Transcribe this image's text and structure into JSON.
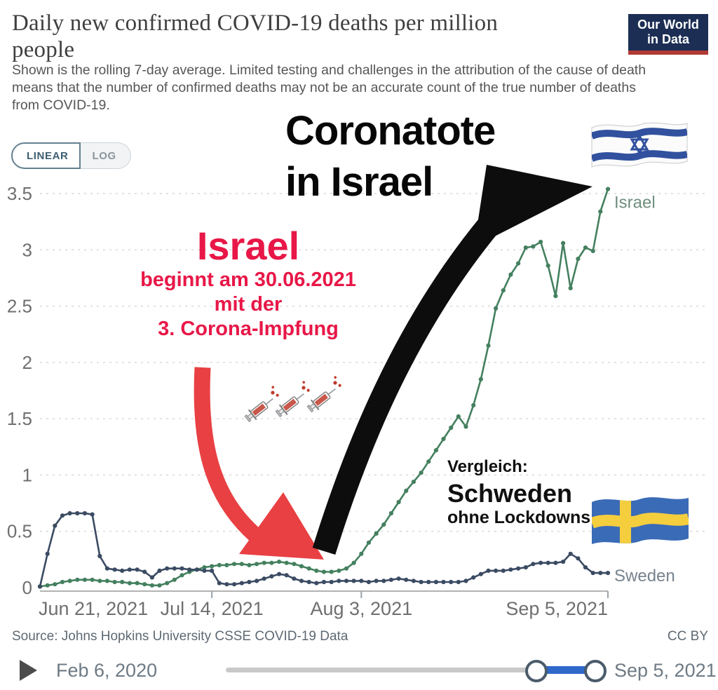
{
  "header": {
    "title_line1": "Daily new confirmed COVID-19 deaths per million",
    "title_line2": "people",
    "subtitle": "Shown is the rolling 7-day average. Limited testing and challenges in the attribution of the cause of death means that the number of confirmed deaths may not be an accurate count of the true number of deaths from COVID-19.",
    "logo_line1": "Our World",
    "logo_line2": "in Data"
  },
  "toggle": {
    "linear_label": "LINEAR",
    "log_label": "LOG",
    "selected": "LINEAR"
  },
  "annotations": {
    "headline_line1": "Coronatote",
    "headline_line2": "in Israel",
    "red_title": "Israel",
    "red_line1": "beginnt am 30.06.2021",
    "red_line2": "mit der",
    "red_line3": "3. Corona-Impfung",
    "red_color": "#e81747",
    "compare_label": "Vergleich:",
    "compare_country": "Schweden",
    "compare_note": "ohne Lockdowns",
    "arrow_red_color": "#e94043",
    "arrow_black_color": "#0d0d0d",
    "icons": [
      "syringe-icon",
      "syringe-icon",
      "syringe-icon",
      "israel-flag-icon",
      "sweden-flag-icon"
    ]
  },
  "chart_data": {
    "type": "line",
    "title": "Daily new confirmed COVID-19 deaths per million people",
    "grid": true,
    "legend_position": "end-of-line-labels",
    "y_axis": {
      "min": 0,
      "max": 3.5,
      "tick_values": [
        0,
        0.5,
        1,
        1.5,
        2,
        2.5,
        3,
        3.5
      ],
      "tick_labels": [
        "0",
        "0.5",
        "1",
        "1.5",
        "2",
        "2.5",
        "3",
        "3.5"
      ]
    },
    "x_axis": {
      "days_total": 76,
      "ticks": [
        {
          "label": "Jun 21, 2021",
          "day": 0,
          "anchor": "start",
          "mark": false
        },
        {
          "label": "Jul 14, 2021",
          "day": 23,
          "anchor": "middle",
          "mark": true
        },
        {
          "label": "Aug 3, 2021",
          "day": 43,
          "anchor": "middle",
          "mark": true
        },
        {
          "label": "Sep 5, 2021",
          "day": 76,
          "anchor": "end",
          "mark": true
        }
      ]
    },
    "series": [
      {
        "name": "Israel",
        "color": "#44805f",
        "label_color": "#6f8e7d",
        "label_dy": 27,
        "values": [
          0.01,
          0.02,
          0.03,
          0.05,
          0.06,
          0.07,
          0.07,
          0.07,
          0.06,
          0.06,
          0.05,
          0.05,
          0.04,
          0.04,
          0.03,
          0.02,
          0.02,
          0.04,
          0.07,
          0.11,
          0.14,
          0.16,
          0.18,
          0.19,
          0.2,
          0.2,
          0.21,
          0.21,
          0.2,
          0.21,
          0.22,
          0.22,
          0.23,
          0.22,
          0.21,
          0.19,
          0.17,
          0.15,
          0.14,
          0.14,
          0.15,
          0.17,
          0.22,
          0.3,
          0.4,
          0.48,
          0.56,
          0.66,
          0.76,
          0.86,
          0.94,
          1.02,
          1.12,
          1.22,
          1.32,
          1.42,
          1.52,
          1.43,
          1.62,
          1.85,
          2.15,
          2.48,
          2.64,
          2.78,
          2.88,
          3.02,
          3.03,
          3.07,
          2.86,
          2.59,
          3.06,
          2.66,
          2.92,
          3.02,
          2.99,
          3.34,
          3.54
        ]
      },
      {
        "name": "Sweden",
        "color": "#3b4b63",
        "label_color": "#76828e",
        "label_dy": 12,
        "values": [
          0.01,
          0.3,
          0.55,
          0.64,
          0.66,
          0.66,
          0.66,
          0.65,
          0.28,
          0.17,
          0.16,
          0.15,
          0.16,
          0.16,
          0.14,
          0.09,
          0.15,
          0.17,
          0.17,
          0.17,
          0.16,
          0.16,
          0.15,
          0.15,
          0.04,
          0.03,
          0.03,
          0.04,
          0.05,
          0.06,
          0.08,
          0.1,
          0.12,
          0.11,
          0.08,
          0.06,
          0.05,
          0.04,
          0.05,
          0.05,
          0.06,
          0.06,
          0.06,
          0.06,
          0.05,
          0.06,
          0.06,
          0.07,
          0.08,
          0.07,
          0.06,
          0.05,
          0.05,
          0.05,
          0.05,
          0.05,
          0.05,
          0.06,
          0.09,
          0.12,
          0.15,
          0.15,
          0.15,
          0.16,
          0.17,
          0.18,
          0.21,
          0.22,
          0.22,
          0.22,
          0.23,
          0.3,
          0.26,
          0.18,
          0.13,
          0.13,
          0.13
        ]
      }
    ]
  },
  "footer": {
    "source": "Source: Johns Hopkins University CSSE COVID-19 Data",
    "license": "CC BY"
  },
  "timeline": {
    "start_label": "Feb 6, 2020",
    "end_label": "Sep 5, 2021"
  }
}
